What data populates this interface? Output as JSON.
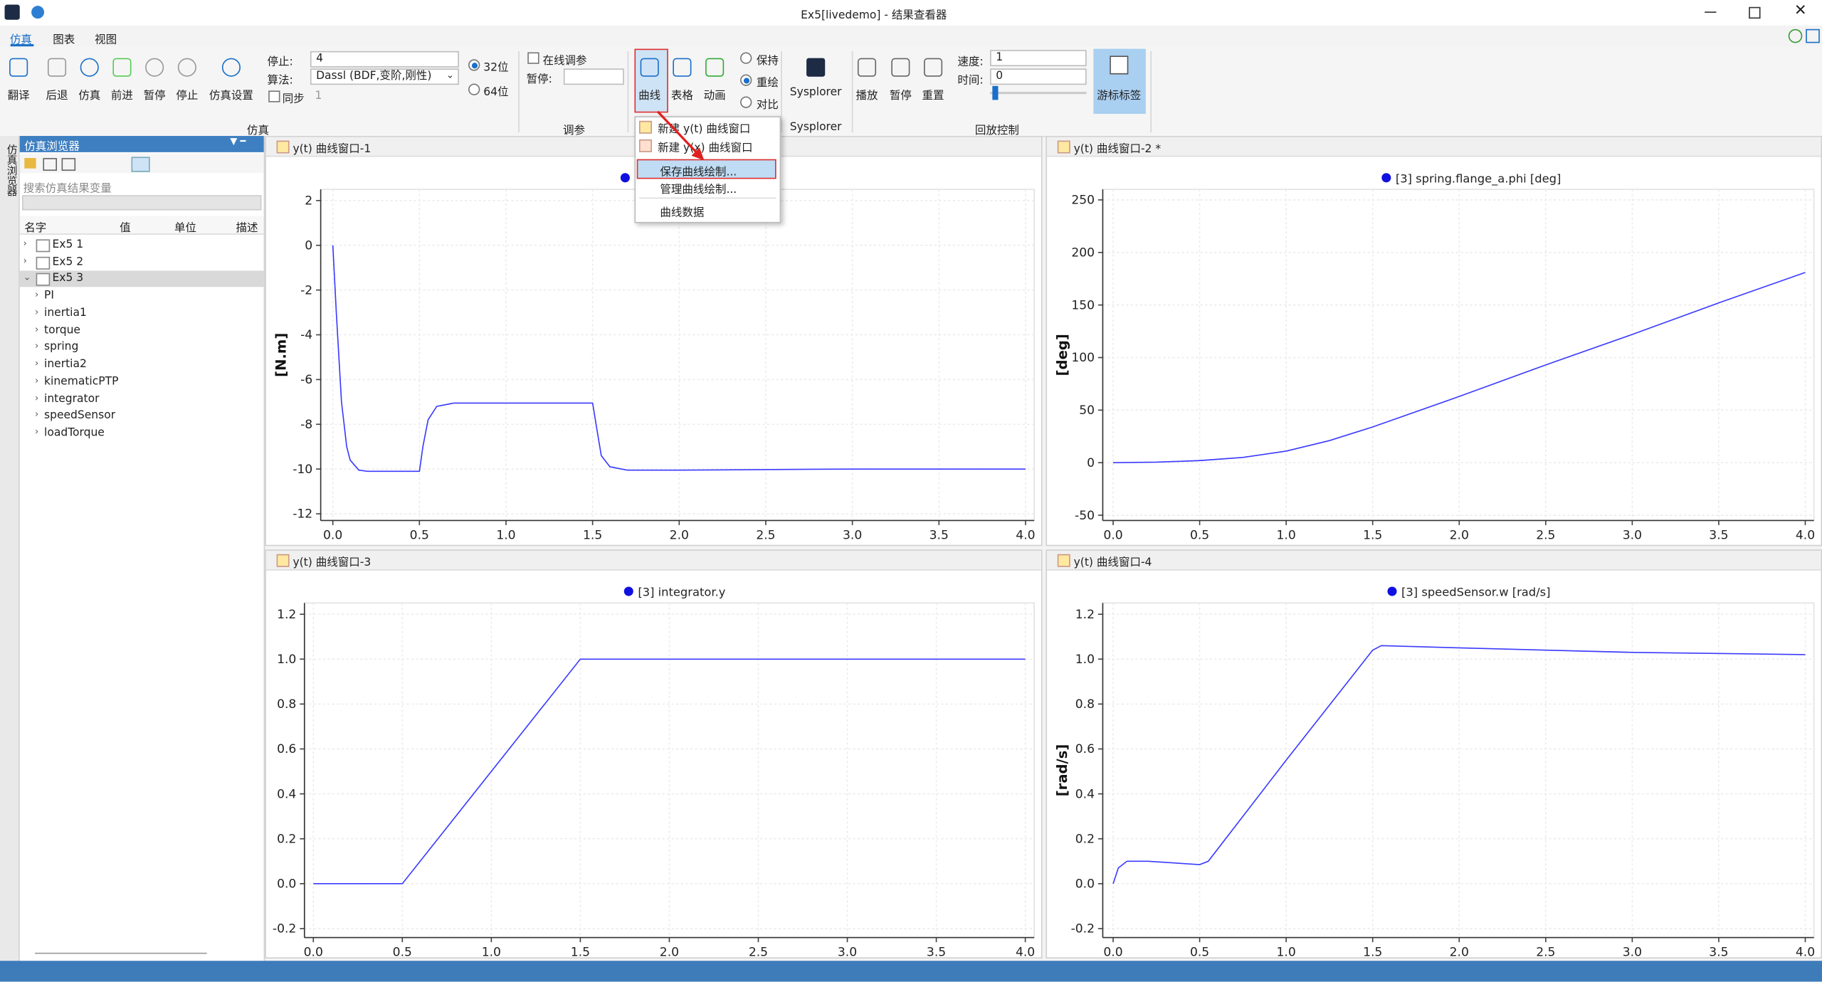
{
  "title_bar": {
    "title": "Ex5[livedemo] - 结果查看器"
  },
  "menu_tabs": [
    "仿真",
    "图表",
    "视图"
  ],
  "sim_group": {
    "label": "仿真",
    "buttons": [
      "翻译",
      "后退",
      "仿真",
      "前进",
      "暂停",
      "停止",
      "仿真设置"
    ],
    "stop_label": "停止:",
    "stop_value": 4,
    "algo_label": "算法:",
    "algo_value": "Dassl (BDF,变阶,刚性)",
    "sync_label": "同步",
    "sync_value": 1,
    "bits": [
      "32位",
      "64位"
    ]
  },
  "tune_group": {
    "label": "调参",
    "online_label": "在线调参",
    "pause_label": "暂停:"
  },
  "plot_group": {
    "buttons": [
      "曲线",
      "表格",
      "动画"
    ],
    "modes": [
      "保持",
      "重绘",
      "对比"
    ]
  },
  "sysplorer_group": {
    "label": "Sysplorer",
    "button": "Sysplorer"
  },
  "playback_group": {
    "label": "回放控制",
    "buttons": [
      "播放",
      "暂停",
      "重置"
    ],
    "speed_label": "速度:",
    "speed_value": 1,
    "time_label": "时间:",
    "time_value": 0,
    "cursor_button": "游标标签"
  },
  "curve_menu": [
    "新建 y(t) 曲线窗口",
    "新建 y(x) 曲线窗口",
    "保存曲线绘制...",
    "管理曲线绘制...",
    "曲线数据"
  ],
  "browser": {
    "title": "仿真浏览器",
    "side_tab": "仿真浏览器",
    "search_placeholder": "搜索仿真结果变量",
    "columns": [
      "名字",
      "值",
      "单位",
      "描述"
    ],
    "results": [
      "Ex5 1",
      "Ex5 2",
      "Ex5 3"
    ],
    "children": [
      "PI",
      "inertia1",
      "torque",
      "spring",
      "inertia2",
      "kinematicPTP",
      "integrator",
      "speedSensor",
      "loadTorque"
    ]
  },
  "plots": [
    {
      "type": "line",
      "tab": "y(t) 曲线窗口-1",
      "ylabel": "[N.m]",
      "grid": true,
      "series": [
        {
          "color": "#3a3aff",
          "x": [
            0,
            0.02,
            0.05,
            0.08,
            0.1,
            0.15,
            0.2,
            0.3,
            0.4,
            0.5,
            0.52,
            0.55,
            0.6,
            0.7,
            1.0,
            1.5,
            1.52,
            1.55,
            1.6,
            1.7,
            2.0,
            3.0,
            4.0
          ],
          "values": [
            0,
            -3,
            -7,
            -9,
            -9.6,
            -10.05,
            -10.1,
            -10.1,
            -10.1,
            -10.1,
            -9,
            -7.8,
            -7.2,
            -7.05,
            -7.05,
            -7.05,
            -8,
            -9.4,
            -9.9,
            -10.05,
            -10.05,
            -10,
            -10
          ]
        }
      ],
      "xlim": [
        -0.07,
        4.05
      ],
      "ylim": [
        -12.3,
        2.5
      ],
      "xticks": [
        {
          "value": 0,
          "label": "0.0"
        },
        0.5,
        {
          "value": 1,
          "label": "1.0"
        },
        1.5,
        {
          "value": 2,
          "label": "2.0"
        },
        2.5,
        {
          "value": 3,
          "label": "3.0"
        },
        3.5,
        {
          "value": 4,
          "label": "4.0"
        }
      ],
      "yticks": [
        2,
        0,
        -2,
        -4,
        -6,
        -8,
        -10,
        -12
      ]
    },
    {
      "type": "line",
      "tab": "y(t) 曲线窗口-2 *",
      "ylabel": "[deg]",
      "grid": true,
      "series": [
        {
          "name": "[3] spring.flange_a.phi [deg]",
          "color": "#3a3aff",
          "x": [
            0,
            0.25,
            0.5,
            0.75,
            1.0,
            1.25,
            1.5,
            2.0,
            2.5,
            3.0,
            3.5,
            4.0
          ],
          "values": [
            0,
            0.5,
            2,
            5,
            11,
            21,
            34,
            63,
            93,
            122,
            152,
            181
          ]
        }
      ],
      "xlim": [
        -0.06,
        4.05
      ],
      "ylim": [
        -55,
        260
      ],
      "xticks": [
        {
          "value": 0,
          "label": "0.0"
        },
        0.5,
        {
          "value": 1,
          "label": "1.0"
        },
        1.5,
        {
          "value": 2,
          "label": "2.0"
        },
        2.5,
        {
          "value": 3,
          "label": "3.0"
        },
        3.5,
        {
          "value": 4,
          "label": "4.0"
        }
      ],
      "yticks": [
        250,
        200,
        150,
        100,
        50,
        0,
        -50
      ]
    },
    {
      "type": "line",
      "tab": "y(t) 曲线窗口-3",
      "grid": true,
      "series": [
        {
          "name": "[3] integrator.y",
          "color": "#3a3aff",
          "x": [
            0,
            0.5,
            1.5,
            4.0
          ],
          "values": [
            0,
            0,
            1,
            1
          ]
        }
      ],
      "xlim": [
        -0.05,
        4.05
      ],
      "ylim": [
        -0.24,
        1.25
      ],
      "xticks": [
        {
          "value": 0,
          "label": "0.0"
        },
        0.5,
        {
          "value": 1,
          "label": "1.0"
        },
        1.5,
        {
          "value": 2,
          "label": "2.0"
        },
        2.5,
        {
          "value": 3,
          "label": "3.0"
        },
        3.5,
        {
          "value": 4,
          "label": "4.0"
        }
      ],
      "yticks": [
        1.2,
        {
          "value": 1,
          "label": "1.0"
        },
        0.8,
        0.6,
        0.4,
        0.2,
        {
          "value": 0,
          "label": "0.0"
        },
        -0.2
      ]
    },
    {
      "type": "line",
      "tab": "y(t) 曲线窗口-4",
      "ylabel": "[rad/s]",
      "grid": true,
      "series": [
        {
          "name": "[3] speedSensor.w [rad/s]",
          "color": "#3a3aff",
          "x": [
            0,
            0.03,
            0.08,
            0.2,
            0.5,
            0.55,
            1.0,
            1.5,
            1.55,
            2.0,
            3.0,
            4.0
          ],
          "values": [
            0,
            0.07,
            0.1,
            0.1,
            0.085,
            0.1,
            0.55,
            1.04,
            1.06,
            1.05,
            1.03,
            1.02
          ]
        }
      ],
      "xlim": [
        -0.06,
        4.05
      ],
      "ylim": [
        -0.24,
        1.25
      ],
      "xticks": [
        {
          "value": 0,
          "label": "0.0"
        },
        0.5,
        {
          "value": 1,
          "label": "1.0"
        },
        1.5,
        {
          "value": 2,
          "label": "2.0"
        },
        2.5,
        {
          "value": 3,
          "label": "3.0"
        },
        3.5,
        {
          "value": 4,
          "label": "4.0"
        }
      ],
      "yticks": [
        1.2,
        {
          "value": 1,
          "label": "1.0"
        },
        0.8,
        0.6,
        0.4,
        0.2,
        {
          "value": 0,
          "label": "0.0"
        },
        -0.2
      ]
    }
  ]
}
